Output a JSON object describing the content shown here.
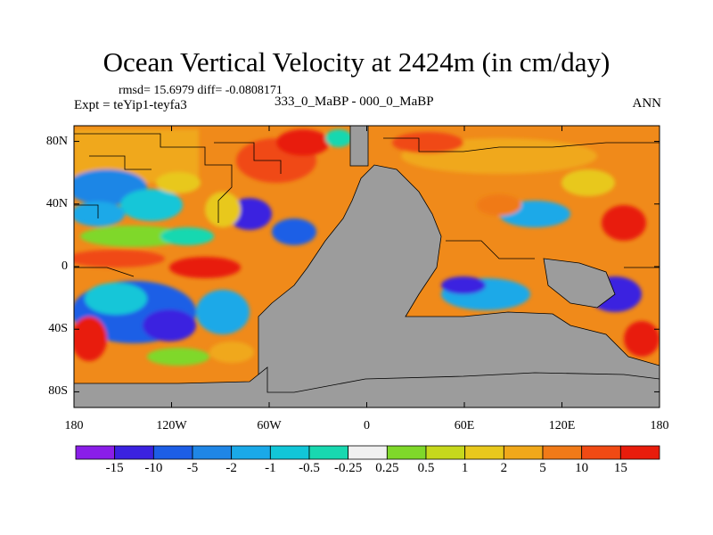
{
  "title": "Ocean Vertical Velocity at 2424m (in cm/day)",
  "stats_line": "rmsd= 15.6979  diff= -0.0808171",
  "expt_line": "Expt = teYip1-teyfa3",
  "subtitle": "333_0_MaBP - 000_0_MaBP",
  "season": "ANN",
  "lat_axis": {
    "labels": [
      "80N",
      "40N",
      "0",
      "40S",
      "80S"
    ],
    "values": [
      80,
      40,
      0,
      -40,
      -80
    ],
    "range": [
      -90,
      90
    ]
  },
  "lon_axis": {
    "labels": [
      "180",
      "120W",
      "60W",
      "0",
      "60E",
      "120E",
      "180"
    ],
    "values": [
      -180,
      -120,
      -60,
      0,
      60,
      120,
      180
    ],
    "range": [
      -180,
      180
    ]
  },
  "colorbar": {
    "labels": [
      "-15",
      "-10",
      "-5",
      "-2",
      "-1",
      "-0.5",
      "-0.25",
      "0.25",
      "0.5",
      "1",
      "2",
      "5",
      "10",
      "15"
    ],
    "colors": [
      "#8a1ee8",
      "#3b22e0",
      "#1d5ee6",
      "#1f86e6",
      "#1aa9e8",
      "#12c6d8",
      "#18d8b0",
      "#f0f0f0",
      "#7fd82a",
      "#c6d81c",
      "#e8c81c",
      "#f0a81a",
      "#f07a18",
      "#f04a14",
      "#e81c0c"
    ]
  },
  "map_colors": {
    "land": "#9c9c9c",
    "coast": "#000000"
  }
}
